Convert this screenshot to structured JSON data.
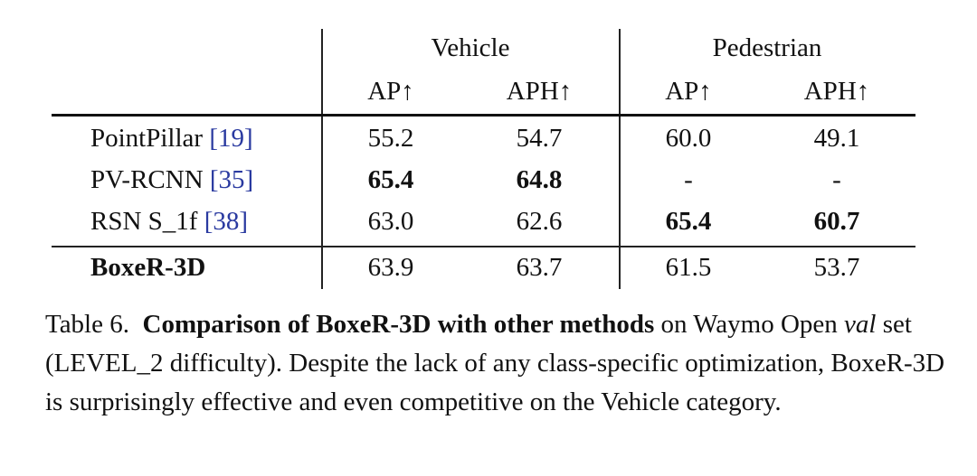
{
  "table": {
    "group_headers": [
      "Vehicle",
      "Pedestrian"
    ],
    "sub_headers": [
      "AP↑",
      "APH↑",
      "AP↑",
      "APH↑"
    ],
    "rows": [
      {
        "method": "PointPillar",
        "cite": "[19]",
        "cells": [
          "55.2",
          "54.7",
          "60.0",
          "49.1"
        ],
        "bold": [
          false,
          false,
          false,
          false
        ],
        "method_bold": false
      },
      {
        "method": "PV-RCNN",
        "cite": "[35]",
        "cells": [
          "65.4",
          "64.8",
          "-",
          "-"
        ],
        "bold": [
          true,
          true,
          false,
          false
        ],
        "method_bold": false
      },
      {
        "method": "RSN S_1f",
        "cite": "[38]",
        "cells": [
          "63.0",
          "62.6",
          "65.4",
          "60.7"
        ],
        "bold": [
          false,
          false,
          true,
          true
        ],
        "method_bold": false
      },
      {
        "method": "BoxeR-3D",
        "cite": "",
        "cells": [
          "63.9",
          "63.7",
          "61.5",
          "53.7"
        ],
        "bold": [
          false,
          false,
          false,
          false
        ],
        "method_bold": true
      }
    ]
  },
  "caption": {
    "label": "Table 6.",
    "title": "Comparison of BoxeR-3D with other methods",
    "text_1": " on Waymo Open ",
    "italic": "val",
    "text_2": " set (LEVEL_2 difficulty). Despite the lack of any class-specific optimization, BoxeR-3D is surprisingly effective and even competitive on the Vehicle category."
  }
}
